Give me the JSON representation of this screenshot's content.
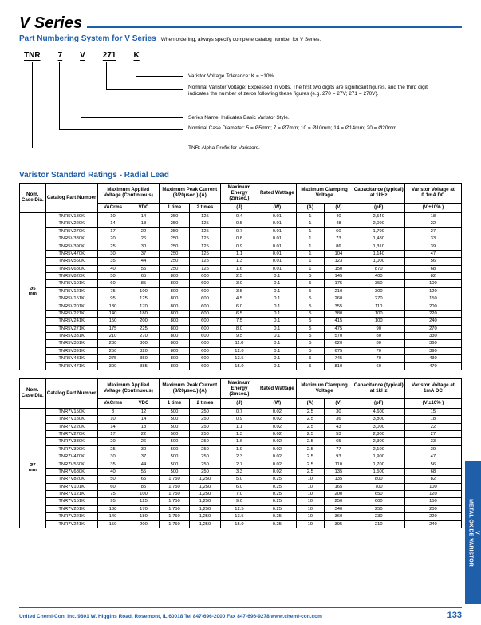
{
  "title": "V Series",
  "pn_section": {
    "heading": "Part Numbering System for V Series",
    "note": "When ordering, always specify complete catalog number for V Series.",
    "codes": [
      "TNR",
      "7",
      "V",
      "271",
      "K"
    ],
    "descs": [
      "Varistor Voltage Tolerance: K = ±10%",
      "Nominal Varistor Voltage: Expressed in volts. The first two digits are significant figures, and the third digit indicates the number of zeros following these figures (e.g. 270 = 27V; 271 = 270V).",
      "Series Name: Indicates Basic Varistor Style.",
      "Nominal Case Diameter: 5 = Ø5mm; 7 = Ø7mm; 10 = Ø10mm; 14 = Ø14mm; 20 = Ø20mm.",
      "TNR: Alpha Prefix for Varistors."
    ]
  },
  "ratings_heading": "Varistor Standard Ratings - Radial Lead",
  "headers": {
    "dia": "Nom. Case Dia.",
    "part": "Catalog Part Number",
    "mav": "Maximum Applied Voltage (Continuous)",
    "vac": "VACrms",
    "vdc": "VDC",
    "mpc": "Maximum Peak Current (8/20µsec.) (A)",
    "t1": "1 time",
    "t2": "2 times",
    "me": "Maximum Energy (2msec.)",
    "me_u": "(J)",
    "rw": "Rated Wattage",
    "rw_u": "(W)",
    "mcv": "Maximum Clamping Voltage",
    "mcv_a": "(A)",
    "mcv_v": "(V)",
    "cap": "Capacitance (typical) at 1kHz",
    "cap_u": "(pF)",
    "vv1": "Varistor Voltage at 0.1mA DC",
    "vv2": "Varistor Voltage at 1mA DC",
    "vv_u": "(V ±10% )"
  },
  "table1": {
    "dia": "Ø5 mm",
    "rows": [
      [
        "TNR5V180K",
        "10",
        "14",
        "250",
        "125",
        "0.4",
        "0.01",
        "1",
        "40",
        "2,540",
        "18"
      ],
      [
        "TNR5V220K",
        "14",
        "18",
        "250",
        "125",
        "0.5",
        "0.01",
        "1",
        "48",
        "2,090",
        "22"
      ],
      [
        "TNR5V270K",
        "17",
        "22",
        "250",
        "125",
        "0.7",
        "0.01",
        "1",
        "60",
        "1,790",
        "27"
      ],
      [
        "TNR5V330K",
        "20",
        "26",
        "250",
        "125",
        "0.8",
        "0.01",
        "1",
        "73",
        "1,480",
        "33"
      ],
      [
        "TNR5V390K",
        "25",
        "30",
        "250",
        "125",
        "0.9",
        "0.01",
        "1",
        "86",
        "1,310",
        "39"
      ],
      [
        "TNR5V470K",
        "30",
        "37",
        "250",
        "125",
        "1.1",
        "0.01",
        "1",
        "104",
        "1,140",
        "47"
      ],
      [
        "TNR5V560K",
        "35",
        "44",
        "250",
        "125",
        "1.3",
        "0.01",
        "1",
        "123",
        "1,000",
        "56"
      ],
      [
        "TNR5V680K",
        "40",
        "55",
        "250",
        "125",
        "1.6",
        "0.01",
        "1",
        "150",
        "870",
        "68"
      ],
      [
        "TNR5V820K",
        "50",
        "65",
        "800",
        "600",
        "2.5",
        "0.1",
        "5",
        "145",
        "400",
        "82"
      ],
      [
        "TNR5V101K",
        "60",
        "85",
        "800",
        "600",
        "3.0",
        "0.1",
        "5",
        "175",
        "350",
        "100"
      ],
      [
        "TNR5V121K",
        "75",
        "100",
        "800",
        "600",
        "3.5",
        "0.1",
        "5",
        "210",
        "300",
        "120"
      ],
      [
        "TNR5V151K",
        "95",
        "125",
        "800",
        "600",
        "4.5",
        "0.1",
        "5",
        "260",
        "270",
        "150"
      ],
      [
        "TNR5V201K",
        "130",
        "170",
        "800",
        "600",
        "6.0",
        "0.1",
        "5",
        "355",
        "110",
        "200"
      ],
      [
        "TNR5V221K",
        "140",
        "180",
        "800",
        "600",
        "6.5",
        "0.1",
        "5",
        "380",
        "100",
        "220"
      ],
      [
        "TNR5V241K",
        "150",
        "200",
        "800",
        "600",
        "7.5",
        "0.1",
        "5",
        "415",
        "100",
        "240"
      ],
      [
        "TNR5V271K",
        "175",
        "225",
        "800",
        "600",
        "8.0",
        "0.1",
        "5",
        "475",
        "90",
        "270"
      ],
      [
        "TNR5V331K",
        "210",
        "270",
        "800",
        "600",
        "9.5",
        "0.1",
        "5",
        "570",
        "80",
        "330"
      ],
      [
        "TNR5V361K",
        "230",
        "300",
        "800",
        "600",
        "11.0",
        "0.1",
        "5",
        "620",
        "80",
        "360"
      ],
      [
        "TNR5V391K",
        "250",
        "320",
        "800",
        "600",
        "12.0",
        "0.1",
        "5",
        "675",
        "70",
        "390"
      ],
      [
        "TNR5V431K",
        "275",
        "350",
        "800",
        "600",
        "13.5",
        "0.1",
        "5",
        "745",
        "70",
        "430"
      ],
      [
        "TNR5V471K",
        "300",
        "385",
        "800",
        "600",
        "15.0",
        "0.1",
        "5",
        "810",
        "60",
        "470"
      ]
    ]
  },
  "table2": {
    "dia": "Ø7 mm",
    "rows": [
      [
        "TNR7V150K",
        "8",
        "12",
        "500",
        "250",
        "0.7",
        "0.02",
        "2.5",
        "30",
        "4,600",
        "15"
      ],
      [
        "TNR7V180K",
        "10",
        "14",
        "500",
        "250",
        "0.9",
        "0.02",
        "2.5",
        "36",
        "3,800",
        "18"
      ],
      [
        "TNR7V220K",
        "14",
        "18",
        "500",
        "250",
        "1.1",
        "0.02",
        "2.5",
        "43",
        "3,000",
        "22"
      ],
      [
        "TNR7V270K",
        "17",
        "22",
        "500",
        "250",
        "1.3",
        "0.02",
        "2.5",
        "53",
        "2,800",
        "27"
      ],
      [
        "TNR7V330K",
        "20",
        "26",
        "500",
        "250",
        "1.6",
        "0.02",
        "2.5",
        "65",
        "2,300",
        "33"
      ],
      [
        "TNR7V390K",
        "25",
        "30",
        "500",
        "250",
        "1.9",
        "0.02",
        "2.5",
        "77",
        "2,100",
        "39"
      ],
      [
        "TNR7V470K",
        "30",
        "37",
        "500",
        "250",
        "2.3",
        "0.02",
        "2.5",
        "93",
        "1,900",
        "47"
      ],
      [
        "TNR7V560K",
        "35",
        "44",
        "500",
        "250",
        "2.7",
        "0.02",
        "2.5",
        "110",
        "1,700",
        "56"
      ],
      [
        "TNR7V680K",
        "40",
        "55",
        "500",
        "250",
        "3.3",
        "0.02",
        "2.5",
        "135",
        "1,500",
        "68"
      ],
      [
        "TNR7V820K",
        "50",
        "65",
        "1,750",
        "1,250",
        "5.0",
        "0.25",
        "10",
        "135",
        "800",
        "82"
      ],
      [
        "TNR7V101K",
        "60",
        "85",
        "1,750",
        "1,250",
        "6.0",
        "0.25",
        "10",
        "165",
        "700",
        "100"
      ],
      [
        "TNR7V121K",
        "75",
        "100",
        "1,750",
        "1,250",
        "7.0",
        "0.25",
        "10",
        "200",
        "650",
        "120"
      ],
      [
        "TNR7V151K",
        "95",
        "125",
        "1,750",
        "1,250",
        "9.0",
        "0.25",
        "10",
        "250",
        "600",
        "150"
      ],
      [
        "TNR7V201K",
        "130",
        "170",
        "1,750",
        "1,250",
        "12.5",
        "0.25",
        "10",
        "340",
        "250",
        "200"
      ],
      [
        "TNR7V221K",
        "140",
        "180",
        "1,750",
        "1,250",
        "13.5",
        "0.25",
        "10",
        "360",
        "230",
        "220"
      ],
      [
        "TNR7V241K",
        "150",
        "200",
        "1,750",
        "1,250",
        "15.0",
        "0.25",
        "10",
        "395",
        "210",
        "240"
      ]
    ]
  },
  "sidetab": {
    "line1": "V",
    "line2": "METAL OXIDE VARISTOR"
  },
  "footer": {
    "text": "United Chemi-Con, Inc. 9801 W. Higgins Road, Rosemont, IL 60018  Tel 847-696-2000  Fax 847-696-9278  www.chemi-con.com",
    "page": "133"
  },
  "colors": {
    "accent": "#1f5ea8"
  }
}
